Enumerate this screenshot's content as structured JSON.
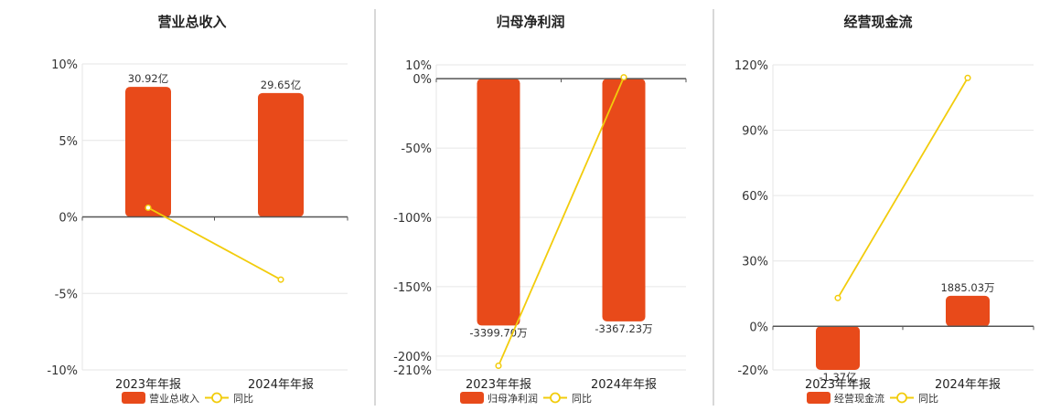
{
  "colors": {
    "bar": "#e84a1a",
    "line": "#f2cc0c",
    "grid": "#e6e6e6",
    "axis": "#555555",
    "divider": "#b0b0b0"
  },
  "chart_data": [
    {
      "type": "bar",
      "title": "营业总收入",
      "categories": [
        "2023年年报",
        "2024年年报"
      ],
      "bar_values": [
        30.92,
        29.65
      ],
      "bar_labels": [
        "30.92亿",
        "29.65亿"
      ],
      "bar_unit": "亿",
      "yoy_values": [
        0.6,
        -4.1
      ],
      "y_axis": {
        "min": -10,
        "max": 10,
        "ticks": [
          "10%",
          "5%",
          "0%",
          "-5%",
          "-10%"
        ],
        "tick_values": [
          10,
          5,
          0,
          -5,
          -10
        ]
      },
      "bar_pct": [
        8.5,
        8.1
      ],
      "legend": [
        "营业总收入",
        "同比"
      ]
    },
    {
      "type": "bar",
      "title": "归母净利润",
      "categories": [
        "2023年年报",
        "2024年年报"
      ],
      "bar_values": [
        -3399.7,
        -3367.23
      ],
      "bar_labels": [
        "-3399.70万",
        "-3367.23万"
      ],
      "bar_unit": "万",
      "yoy_values": [
        -207,
        1
      ],
      "y_axis": {
        "min": -210,
        "max": 10,
        "ticks": [
          "10%",
          "0%",
          "-50%",
          "-100%",
          "-150%",
          "-200%",
          "-210%"
        ],
        "tick_values": [
          10,
          0,
          -50,
          -100,
          -150,
          -200,
          -210
        ]
      },
      "bar_pct": [
        -178,
        -175
      ],
      "legend": [
        "归母净利润",
        "同比"
      ]
    },
    {
      "type": "bar",
      "title": "经营现金流",
      "categories": [
        "2023年年报",
        "2024年年报"
      ],
      "bar_values": [
        -1.37,
        0.1885
      ],
      "bar_labels": [
        "-1.37亿",
        "1885.03万"
      ],
      "bar_unit": "",
      "yoy_values": [
        13,
        114
      ],
      "y_axis": {
        "min": -20,
        "max": 120,
        "ticks": [
          "120%",
          "90%",
          "60%",
          "30%",
          "0%",
          "-20%"
        ],
        "tick_values": [
          120,
          90,
          60,
          30,
          0,
          -20
        ]
      },
      "bar_pct": [
        -20,
        14
      ],
      "legend": [
        "经营现金流",
        "同比"
      ]
    }
  ]
}
